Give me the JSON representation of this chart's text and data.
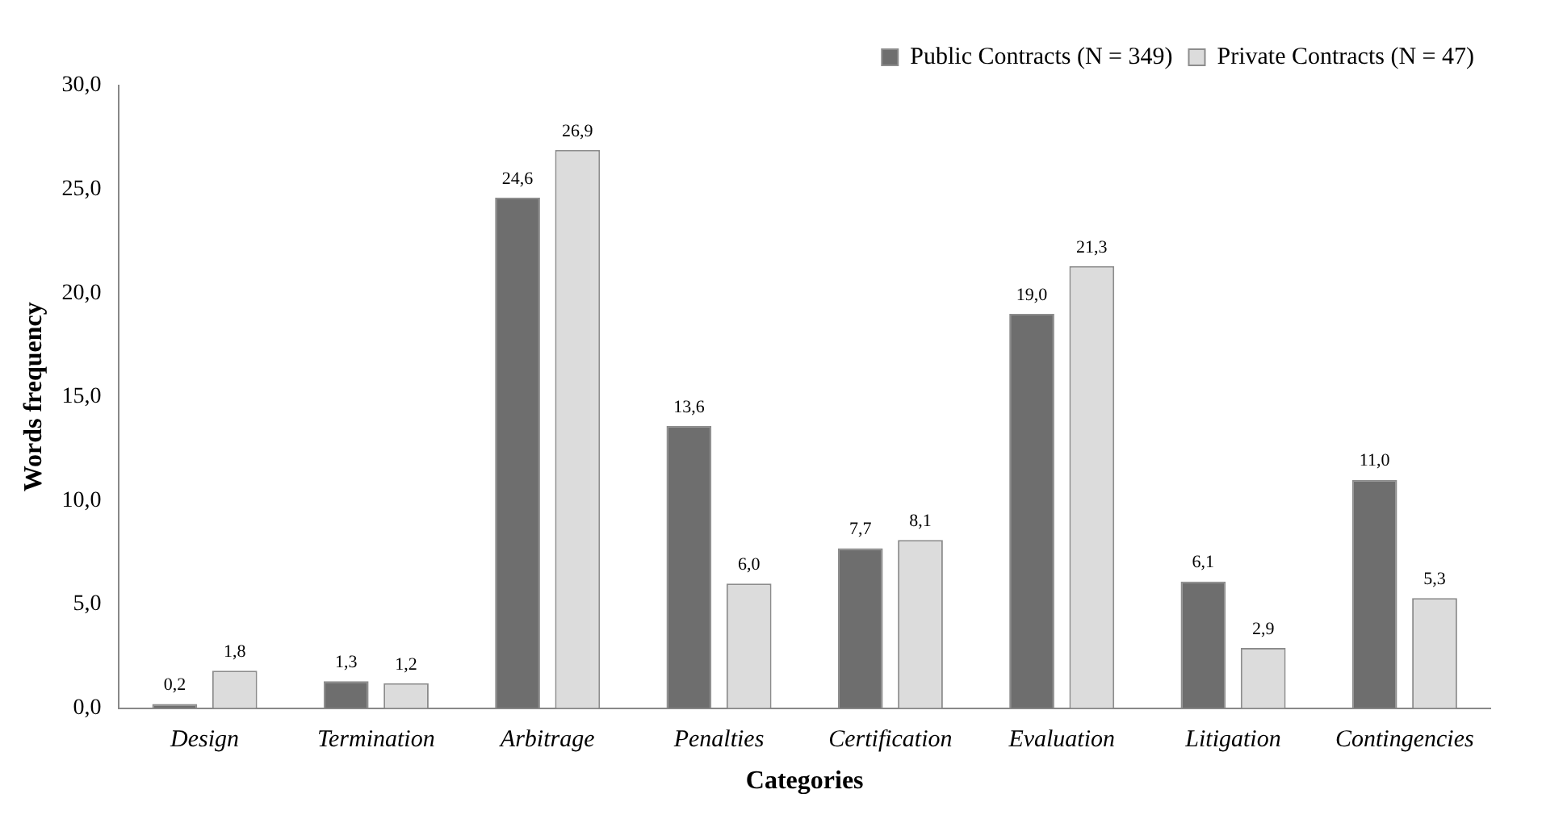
{
  "chart_data": {
    "type": "bar",
    "xlabel": "Categories",
    "ylabel": "Words frequency",
    "categories": [
      "Design",
      "Termination",
      "Arbitrage",
      "Penalties",
      "Certification",
      "Evaluation",
      "Litigation",
      "Contingencies"
    ],
    "series": [
      {
        "name": "Public Contracts (N = 349)",
        "color": "#6e6e6e",
        "values": [
          0.2,
          1.3,
          24.6,
          13.6,
          7.7,
          19.0,
          6.1,
          11.0
        ],
        "value_labels": [
          "0,2",
          "1,3",
          "24,6",
          "13,6",
          "7,7",
          "19,0",
          "6,1",
          "11,0"
        ]
      },
      {
        "name": "Private Contracts (N = 47)",
        "color": "#dcdcdc",
        "values": [
          1.8,
          1.2,
          26.9,
          6.0,
          8.1,
          21.3,
          2.9,
          5.3
        ],
        "value_labels": [
          "1,8",
          "1,2",
          "26,9",
          "6,0",
          "8,1",
          "21,3",
          "2,9",
          "5,3"
        ]
      }
    ],
    "ylim": [
      0,
      30
    ],
    "yticks": [
      {
        "value": 0,
        "label": "0,0"
      },
      {
        "value": 5,
        "label": "5,0"
      },
      {
        "value": 10,
        "label": "10,0"
      },
      {
        "value": 15,
        "label": "15,0"
      },
      {
        "value": 20,
        "label": "20,0"
      },
      {
        "value": 25,
        "label": "25,0"
      },
      {
        "value": 30,
        "label": "30,0"
      }
    ],
    "grid": false,
    "legend": "top right"
  }
}
